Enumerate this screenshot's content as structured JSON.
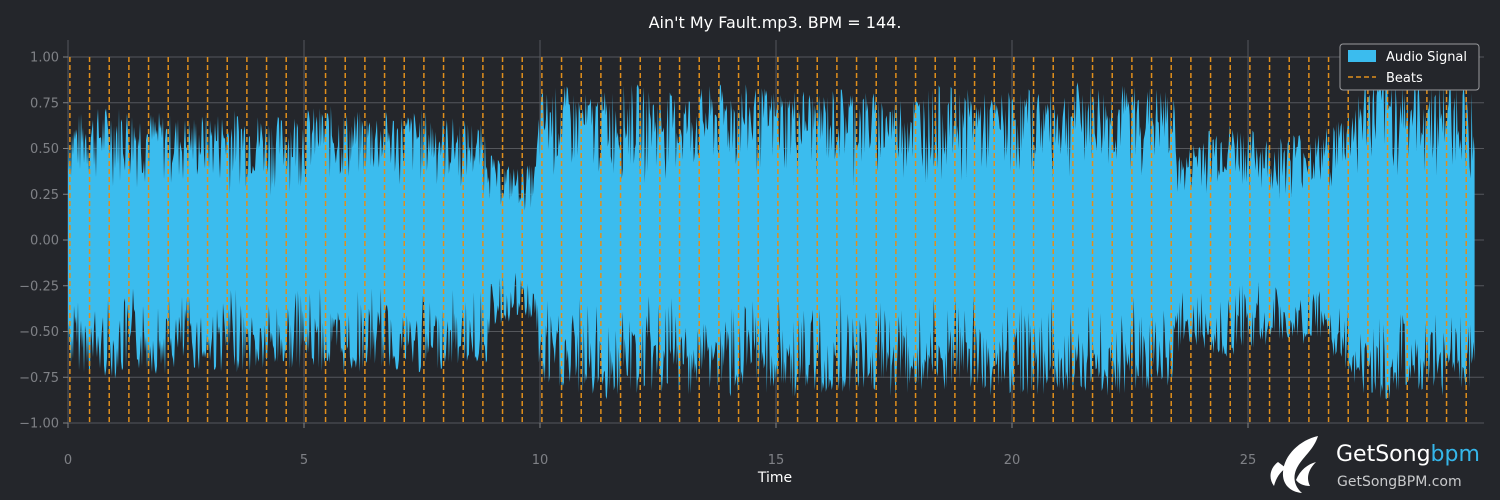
{
  "chart_data": {
    "type": "area",
    "title": "Ain't My Fault.mp3. BPM = 144.",
    "xlabel": "Time",
    "ylabel": "",
    "xlim": [
      0,
      30
    ],
    "ylim": [
      -1.0,
      1.0
    ],
    "x_ticks": [
      "0",
      "5",
      "10",
      "15",
      "20",
      "25"
    ],
    "y_ticks": [
      "1.00",
      "0.75",
      "0.50",
      "0.25",
      "0.00",
      "−0.25",
      "−0.50",
      "−0.75",
      "−1.00"
    ],
    "grid": true,
    "legend_position": "top-right",
    "legend": [
      "Audio Signal",
      "Beats"
    ],
    "bpm": 144,
    "beat_start": 0.04,
    "beat_end": 29.8,
    "series": [
      {
        "name": "Audio Signal",
        "x": [
          0.0,
          0.5,
          1.0,
          1.5,
          2.0,
          2.5,
          3.0,
          3.5,
          4.0,
          4.5,
          5.0,
          5.5,
          6.0,
          6.5,
          7.0,
          7.5,
          8.0,
          8.5,
          8.9,
          9.0,
          9.5,
          9.9,
          10.0,
          10.5,
          11.0,
          11.5,
          12.0,
          12.5,
          13.0,
          13.5,
          14.0,
          14.5,
          15.0,
          15.5,
          16.0,
          16.5,
          17.0,
          17.5,
          18.0,
          18.5,
          19.0,
          19.5,
          20.0,
          20.5,
          21.0,
          21.5,
          22.0,
          22.5,
          23.0,
          23.4,
          23.6,
          24.0,
          24.5,
          25.0,
          25.5,
          26.0,
          26.5,
          27.0,
          27.5,
          28.0,
          28.5,
          29.0,
          29.5,
          29.8
        ],
        "upper": [
          0.68,
          0.72,
          0.75,
          0.72,
          0.7,
          0.68,
          0.7,
          0.72,
          0.7,
          0.68,
          0.72,
          0.74,
          0.7,
          0.72,
          0.7,
          0.72,
          0.68,
          0.66,
          0.62,
          0.45,
          0.4,
          0.42,
          0.82,
          0.85,
          0.8,
          0.84,
          0.86,
          0.82,
          0.8,
          0.84,
          0.86,
          0.85,
          0.83,
          0.84,
          0.82,
          0.85,
          0.82,
          0.8,
          0.82,
          0.85,
          0.83,
          0.8,
          0.82,
          0.84,
          0.82,
          0.88,
          0.84,
          0.86,
          0.84,
          0.82,
          0.45,
          0.6,
          0.65,
          0.62,
          0.55,
          0.6,
          0.58,
          0.7,
          0.88,
          0.9,
          0.88,
          0.86,
          0.88,
          0.82
        ],
        "lower": [
          -0.7,
          -0.74,
          -0.76,
          -0.72,
          -0.74,
          -0.7,
          -0.73,
          -0.72,
          -0.74,
          -0.72,
          -0.7,
          -0.73,
          -0.74,
          -0.7,
          -0.72,
          -0.74,
          -0.7,
          -0.68,
          -0.68,
          -0.48,
          -0.44,
          -0.45,
          -0.82,
          -0.85,
          -0.86,
          -0.88,
          -0.85,
          -0.84,
          -0.86,
          -0.82,
          -0.86,
          -0.85,
          -0.84,
          -0.88,
          -0.85,
          -0.83,
          -0.84,
          -0.86,
          -0.84,
          -0.85,
          -0.82,
          -0.86,
          -0.84,
          -0.86,
          -0.84,
          -0.82,
          -0.86,
          -0.84,
          -0.82,
          -0.8,
          -0.55,
          -0.62,
          -0.65,
          -0.6,
          -0.58,
          -0.55,
          -0.6,
          -0.72,
          -0.86,
          -0.88,
          -0.84,
          -0.86,
          -0.84,
          -0.8
        ]
      }
    ]
  },
  "colors": {
    "background": "#24262b",
    "signal": "#3bbcee",
    "beats": "#e08f1c",
    "grid": "#55575c",
    "tick": "#7f8186"
  },
  "watermark": {
    "name_main": "GetSong",
    "name_accent": "bpm",
    "url": "GetSongBPM.com"
  }
}
